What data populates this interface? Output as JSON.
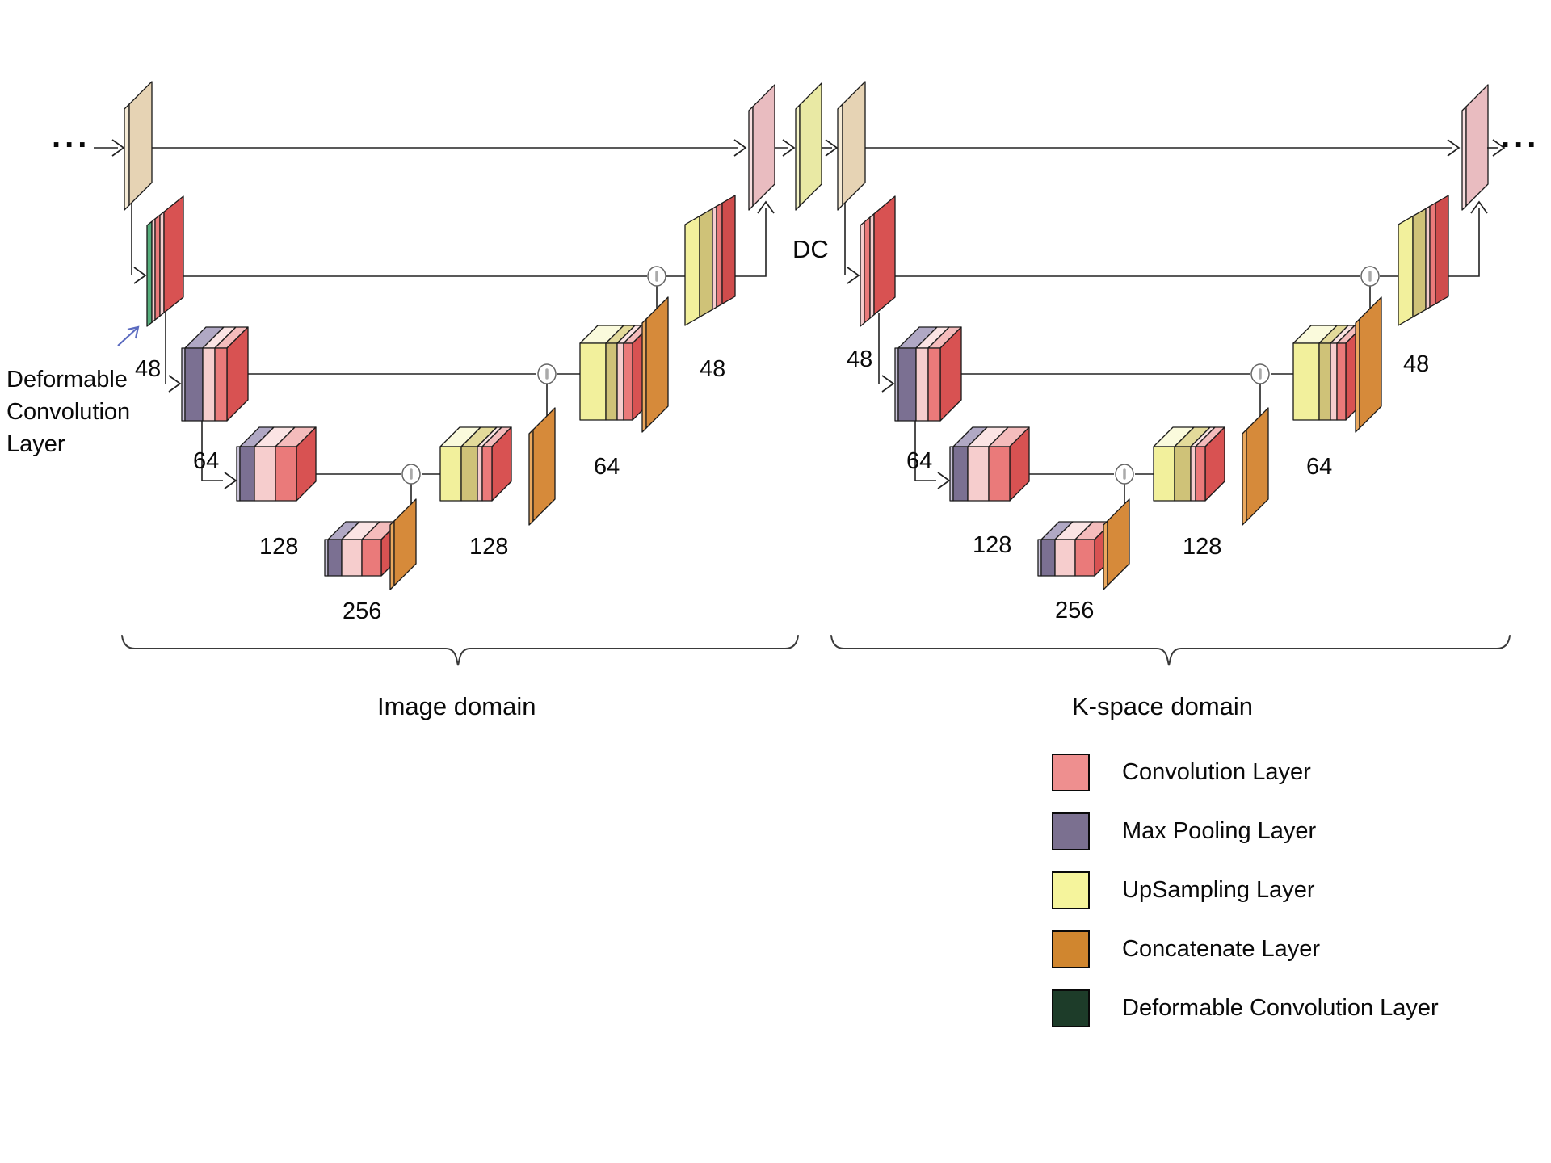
{
  "diagram": {
    "ellipsis_left": "...",
    "ellipsis_right": "...",
    "dc_label": "DC",
    "deformable_annotation": {
      "lines": [
        "Deformable",
        "Convolution",
        "Layer"
      ]
    },
    "domains": {
      "image": "Image domain",
      "kspace": "K-space domain"
    },
    "channel_labels": {
      "image": {
        "enc48": "48",
        "enc64": "64",
        "enc128": "128",
        "bottleneck": "256",
        "dec128": "128",
        "dec64": "64",
        "dec48": "48"
      },
      "kspace": {
        "enc48": "48",
        "enc64": "64",
        "enc128": "128",
        "bottleneck": "256",
        "dec128": "128",
        "dec64": "64",
        "dec48": "48"
      }
    }
  },
  "legend": {
    "items": [
      {
        "id": "conv",
        "label": "Convolution Layer",
        "color": "#ee8f8f"
      },
      {
        "id": "maxpool",
        "label": "Max Pooling Layer",
        "color": "#7b7090"
      },
      {
        "id": "upsample",
        "label": "UpSampling Layer",
        "color": "#f5f49c"
      },
      {
        "id": "concat",
        "label": "Concatenate Layer",
        "color": "#d0862f"
      },
      {
        "id": "deformconv",
        "label": "Deformable Convolution Layer",
        "color": "#1d3c29"
      }
    ]
  },
  "palette": {
    "conv_front": "#ea7a7a",
    "conv_side": "#d85252",
    "conv_top": "#f4bcbc",
    "conv_light_front": "#f6cdcd",
    "conv_light_top": "#fbe4e4",
    "conv_dark_side": "#cf4c4c",
    "maxpool_front": "#7b7092",
    "maxpool_side": "#675d7e",
    "maxpool_top": "#b0a8c4",
    "maxpool_edge": "#cdc6dc",
    "upsample_front": "#f2f09c",
    "upsample_side": "#cfc278",
    "upsample_top": "#fafadc",
    "upsample_mid": "#e3da9a",
    "concat_front": "#d68a3a",
    "concat_edge": "#eba95f",
    "deform_green": "#55ad7b",
    "io_front": "#e6d3b4",
    "io_edge": "#f6ebd6",
    "recon_front": "#e9bcc0",
    "recon_edge": "#f8dfe0",
    "dc_front": "#e9e9a4",
    "dc_edge": "#f6f6c8",
    "outline": "#1a1a1a",
    "line": "#222222",
    "junction_stroke": "#666666",
    "junction_tick": "#aaaaaa",
    "brace": "#3a3a3a",
    "note_arrow": "#5b6bc0",
    "text": "#0a0a0a"
  }
}
